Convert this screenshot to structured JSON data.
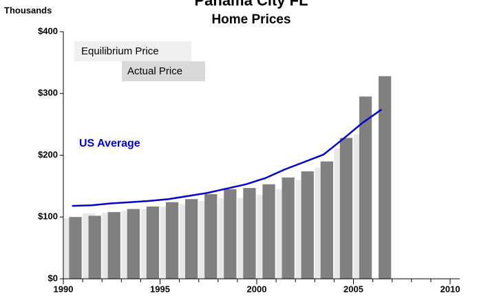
{
  "chart_data": {
    "type": "bar",
    "title": "Panama City FL",
    "subtitle": "Home Prices",
    "y_label": "Thousands",
    "x": [
      1990,
      1991,
      1992,
      1993,
      1994,
      1995,
      1996,
      1997,
      1998,
      1999,
      2000,
      2001,
      2002,
      2003,
      2004,
      2005,
      2006
    ],
    "series": [
      {
        "name": "Equilibrium Price",
        "color": "#e8e8e8",
        "values": [
          98,
          106,
          107,
          110,
          113,
          117,
          121,
          126,
          130,
          131,
          136,
          145,
          160,
          180,
          211,
          234,
          null
        ]
      },
      {
        "name": "Actual Price",
        "color": "#808080",
        "values": [
          100,
          102,
          108,
          113,
          117,
          124,
          129,
          137,
          145,
          147,
          153,
          164,
          174,
          190,
          228,
          295,
          328
        ]
      },
      {
        "name": "US Average",
        "type": "line",
        "color": "#0000cc",
        "values": [
          118,
          119,
          122,
          124,
          126,
          129,
          134,
          139,
          146,
          153,
          163,
          177,
          189,
          201,
          226,
          252,
          274
        ]
      }
    ],
    "xlim": [
      1990,
      2010
    ],
    "xticks": [
      1990,
      1995,
      2000,
      2005,
      2010
    ],
    "ylim": [
      0,
      400
    ],
    "yticks": [
      {
        "value": 0,
        "label": "$0"
      },
      {
        "value": 100,
        "label": "$100"
      },
      {
        "value": 200,
        "label": "$200"
      },
      {
        "value": 300,
        "label": "$300"
      },
      {
        "value": 400,
        "label": "$400"
      }
    ],
    "grid": false
  }
}
